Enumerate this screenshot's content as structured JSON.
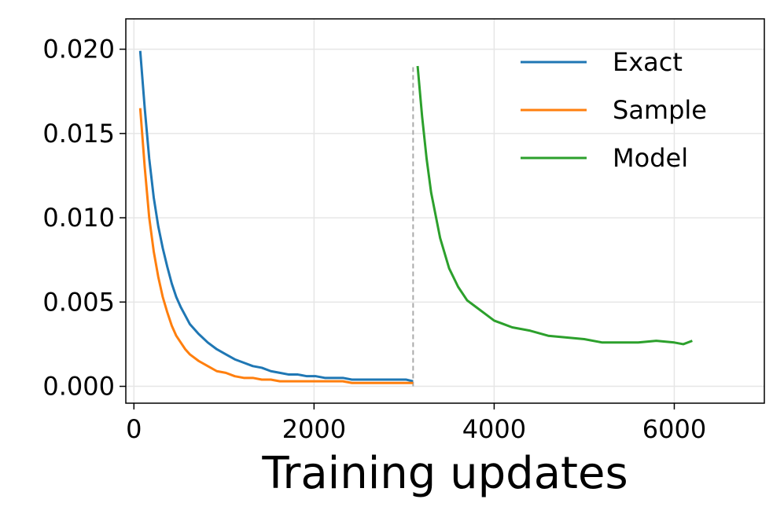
{
  "chart_data": {
    "type": "line",
    "xlabel": "Training updates",
    "xlim": [
      -90,
      7000
    ],
    "ylim": [
      -0.001,
      0.0218
    ],
    "xticks": [
      0,
      2000,
      4000,
      6000
    ],
    "yticks": [
      {
        "value": 0,
        "label": "0.000"
      },
      {
        "value": 0.005,
        "label": "0.005"
      },
      {
        "value": 0.01,
        "label": "0.010"
      },
      {
        "value": 0.015,
        "label": "0.015"
      },
      {
        "value": 0.02,
        "label": "0.020"
      }
    ],
    "grid": true,
    "legend": "upper right",
    "switch_line": {
      "x": 3100,
      "y0": 0,
      "y1": 0.019,
      "color": "#aaaaaa"
    },
    "series": [
      {
        "name": "Exact",
        "color": "#1f77b4",
        "x": [
          70,
          120,
          170,
          220,
          270,
          320,
          370,
          420,
          470,
          520,
          570,
          620,
          720,
          820,
          920,
          1020,
          1120,
          1220,
          1320,
          1420,
          1520,
          1620,
          1720,
          1820,
          1920,
          2020,
          2120,
          2220,
          2320,
          2420,
          2520,
          2620,
          2720,
          2820,
          2920,
          3020,
          3100
        ],
        "values": [
          0.0199,
          0.0165,
          0.0135,
          0.0112,
          0.0095,
          0.0082,
          0.0071,
          0.0061,
          0.0053,
          0.0047,
          0.0042,
          0.0037,
          0.0031,
          0.0026,
          0.0022,
          0.0019,
          0.0016,
          0.0014,
          0.0012,
          0.0011,
          0.0009,
          0.0008,
          0.0007,
          0.0007,
          0.0006,
          0.0006,
          0.0005,
          0.0005,
          0.0005,
          0.0004,
          0.0004,
          0.0004,
          0.0004,
          0.0004,
          0.0004,
          0.0004,
          0.0003
        ]
      },
      {
        "name": "Sample",
        "color": "#ff7f0e",
        "x": [
          70,
          120,
          170,
          220,
          270,
          320,
          370,
          420,
          470,
          520,
          570,
          620,
          720,
          820,
          920,
          1020,
          1120,
          1220,
          1320,
          1420,
          1520,
          1620,
          1720,
          1820,
          1920,
          2020,
          2120,
          2220,
          2320,
          2420,
          2520,
          2620,
          2720,
          2820,
          2920,
          3020,
          3100
        ],
        "values": [
          0.0165,
          0.013,
          0.01,
          0.008,
          0.0065,
          0.0053,
          0.0044,
          0.0036,
          0.003,
          0.0026,
          0.0022,
          0.0019,
          0.0015,
          0.0012,
          0.0009,
          0.0008,
          0.0006,
          0.0005,
          0.0005,
          0.0004,
          0.0004,
          0.0003,
          0.0003,
          0.0003,
          0.0003,
          0.0003,
          0.0003,
          0.0003,
          0.0003,
          0.0002,
          0.0002,
          0.0002,
          0.0002,
          0.0002,
          0.0002,
          0.0002,
          0.0002
        ]
      },
      {
        "name": "Model",
        "color": "#2ca02c",
        "x": [
          3150,
          3200,
          3250,
          3300,
          3400,
          3500,
          3600,
          3700,
          3800,
          3900,
          4000,
          4100,
          4200,
          4400,
          4600,
          4800,
          5000,
          5200,
          5400,
          5600,
          5800,
          6000,
          6100,
          6200
        ],
        "values": [
          0.019,
          0.016,
          0.0135,
          0.0115,
          0.0088,
          0.007,
          0.0059,
          0.0051,
          0.0047,
          0.0043,
          0.0039,
          0.0037,
          0.0035,
          0.0033,
          0.003,
          0.0029,
          0.0028,
          0.0026,
          0.0026,
          0.0026,
          0.0027,
          0.0026,
          0.0025,
          0.0027
        ]
      }
    ]
  }
}
